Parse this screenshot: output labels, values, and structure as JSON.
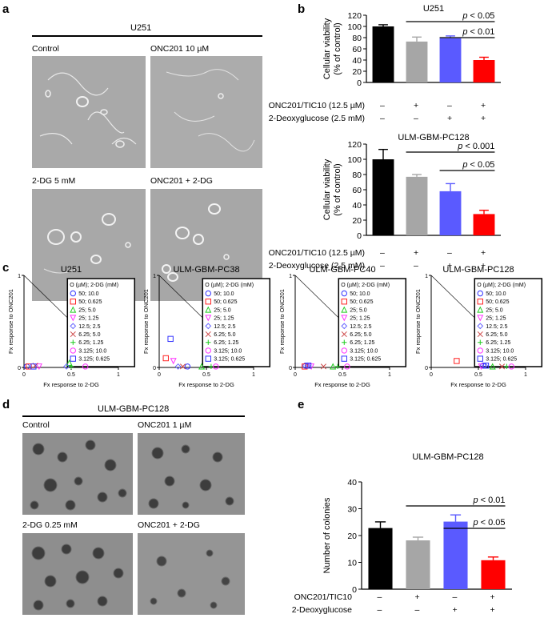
{
  "panels": {
    "a": {
      "label": "a",
      "cell_line": "U251",
      "images": [
        {
          "caption": "Control"
        },
        {
          "caption": "ONC201 10 µM"
        },
        {
          "caption": "2-DG 5 mM"
        },
        {
          "caption": "ONC201 + 2-DG"
        }
      ]
    },
    "b": {
      "label": "b"
    },
    "c": {
      "label": "c"
    },
    "d": {
      "label": "d",
      "cell_line": "ULM-GBM-PC128",
      "images": [
        {
          "caption": "Control"
        },
        {
          "caption": "ONC201 1 µM"
        },
        {
          "caption": "2-DG 0.25 mM"
        },
        {
          "caption": "ONC201 + 2-DG"
        }
      ]
    },
    "e": {
      "label": "e"
    }
  },
  "condition_rows_b": [
    {
      "label": "ONC201/TIC10 (12.5 µM)",
      "signs": [
        "–",
        "+",
        "–",
        "+"
      ]
    },
    {
      "label": "2-Deoxyglucose (2.5 mM)",
      "signs": [
        "–",
        "–",
        "+",
        "+"
      ]
    }
  ],
  "condition_rows_e": [
    {
      "label": "ONC201/TIC10",
      "signs": [
        "–",
        "+",
        "–",
        "+"
      ]
    },
    {
      "label": "2-Deoxyglucose",
      "signs": [
        "–",
        "–",
        "+",
        "+"
      ]
    }
  ],
  "colors": {
    "control": "#000000",
    "onc201": "#a6a6a6",
    "twodg": "#5a5aff",
    "combo": "#ff0000"
  },
  "chart_data": [
    {
      "id": "b1",
      "type": "bar",
      "title": "U251",
      "ylabel": "Cellular viability (% of control)",
      "ylim": [
        0,
        120
      ],
      "yticks": [
        0,
        20,
        40,
        60,
        80,
        100,
        120
      ],
      "values": [
        100,
        73,
        79,
        40
      ],
      "errors": [
        3,
        8,
        4,
        5
      ],
      "significance": [
        {
          "from": 1,
          "to": 3,
          "label": "p < 0.05"
        },
        {
          "from": 2,
          "to": 3,
          "label": "p < 0.01"
        }
      ]
    },
    {
      "id": "b2",
      "type": "bar",
      "title": "ULM-GBM-PC128",
      "ylabel": "Cellular viability (% of control)",
      "ylim": [
        0,
        120
      ],
      "yticks": [
        0,
        20,
        40,
        60,
        80,
        100,
        120
      ],
      "values": [
        100,
        77,
        58,
        28
      ],
      "errors": [
        13,
        3,
        10,
        5
      ],
      "significance": [
        {
          "from": 1,
          "to": 3,
          "label": "p < 0.001"
        },
        {
          "from": 2,
          "to": 3,
          "label": "p < 0.05"
        }
      ]
    },
    {
      "id": "c1",
      "type": "scatter",
      "title": "U251",
      "xlabel": "Fx response to 2-DG",
      "ylabel": "Fx response to ONC201",
      "xlim": [
        0,
        1
      ],
      "ylim": [
        0,
        1
      ],
      "xticks": [
        0,
        0.5,
        1
      ],
      "yticks": [
        0,
        1
      ],
      "legend_title": "O (µM); 2-DG (mM)",
      "series": [
        {
          "name": "50; 10.0",
          "marker": "circle",
          "color": "#3333ff",
          "x": 0.03,
          "y": 0.01
        },
        {
          "name": "50; 0.625",
          "marker": "square",
          "color": "#ff2222",
          "x": 0.05,
          "y": 0.01
        },
        {
          "name": "25; 5.0",
          "marker": "triangle-up",
          "color": "#22cc22",
          "x": 0.48,
          "y": 0.05
        },
        {
          "name": "25; 1.25",
          "marker": "triangle-down",
          "color": "#ff33ff",
          "x": 0.16,
          "y": 0.01
        },
        {
          "name": "12.5; 2.5",
          "marker": "diamond",
          "color": "#6666ff",
          "x": 0.45,
          "y": 0.01
        },
        {
          "name": "6.25; 5.0",
          "marker": "x",
          "color": "#cc4444",
          "x": 0.12,
          "y": 0.02
        },
        {
          "name": "6.25; 1.25",
          "marker": "plus",
          "color": "#22cc22",
          "x": 0.5,
          "y": 0.01
        },
        {
          "name": "3.125; 10.0",
          "marker": "circle",
          "color": "#ff33ff",
          "x": 0.65,
          "y": 0.01
        },
        {
          "name": "3.125; 0.625",
          "marker": "square",
          "color": "#3333ff",
          "x": 0.1,
          "y": 0.01
        }
      ]
    },
    {
      "id": "c2",
      "type": "scatter",
      "title": "ULM-GBM-PC38",
      "xlabel": "Fx response to 2-DG",
      "ylabel": "Fx response to ONC201",
      "xlim": [
        0,
        1
      ],
      "ylim": [
        0,
        1
      ],
      "xticks": [
        0,
        0.5,
        1
      ],
      "yticks": [
        0,
        1
      ],
      "legend_title": "O (µM); 2-DG (mM)",
      "series": [
        {
          "name": "50; 10.0",
          "marker": "circle",
          "color": "#3333ff",
          "x": 0.3,
          "y": 0.01
        },
        {
          "name": "50; 0.625",
          "marker": "square",
          "color": "#ff2222",
          "x": 0.07,
          "y": 0.1
        },
        {
          "name": "25; 5.0",
          "marker": "triangle-up",
          "color": "#22cc22",
          "x": 0.45,
          "y": 0.01
        },
        {
          "name": "25; 1.25",
          "marker": "triangle-down",
          "color": "#ff33ff",
          "x": 0.15,
          "y": 0.07
        },
        {
          "name": "12.5; 2.5",
          "marker": "diamond",
          "color": "#6666ff",
          "x": 0.2,
          "y": 0.01
        },
        {
          "name": "6.25; 5.0",
          "marker": "x",
          "color": "#cc4444",
          "x": 0.25,
          "y": 0.01
        },
        {
          "name": "6.25; 1.25",
          "marker": "plus",
          "color": "#22cc22",
          "x": 0.55,
          "y": 0.01
        },
        {
          "name": "3.125; 10.0",
          "marker": "circle",
          "color": "#ff33ff",
          "x": 0.6,
          "y": 0.01
        },
        {
          "name": "3.125; 0.625",
          "marker": "square",
          "color": "#3333ff",
          "x": 0.12,
          "y": 0.31
        }
      ]
    },
    {
      "id": "c3",
      "type": "scatter",
      "title": "ULM-GBM-PC40",
      "xlabel": "Fx response to 2-DG",
      "ylabel": "Fx response to ONC201",
      "xlim": [
        0,
        1
      ],
      "ylim": [
        0,
        1
      ],
      "xticks": [
        0,
        0.5,
        1
      ],
      "yticks": [
        0,
        1
      ],
      "legend_title": "O (µM); 2-DG (mM)",
      "series": [
        {
          "name": "50; 10.0",
          "marker": "circle",
          "color": "#3333ff",
          "x": 0.11,
          "y": 0.02
        },
        {
          "name": "50; 0.625",
          "marker": "square",
          "color": "#ff2222",
          "x": 0.1,
          "y": 0.01
        },
        {
          "name": "25; 5.0",
          "marker": "triangle-up",
          "color": "#22cc22",
          "x": 0.4,
          "y": 0.01
        },
        {
          "name": "25; 1.25",
          "marker": "triangle-down",
          "color": "#ff33ff",
          "x": 0.17,
          "y": 0.01
        },
        {
          "name": "12.5; 2.5",
          "marker": "diamond",
          "color": "#6666ff",
          "x": 0.13,
          "y": 0.02
        },
        {
          "name": "6.25; 5.0",
          "marker": "x",
          "color": "#cc4444",
          "x": 0.3,
          "y": 0.01
        },
        {
          "name": "6.25; 1.25",
          "marker": "plus",
          "color": "#22cc22",
          "x": 0.45,
          "y": 0.01
        },
        {
          "name": "3.125; 10.0",
          "marker": "circle",
          "color": "#ff33ff",
          "x": 0.55,
          "y": 0.01
        },
        {
          "name": "3.125; 0.625",
          "marker": "square",
          "color": "#3333ff",
          "x": 0.14,
          "y": 0.02
        }
      ]
    },
    {
      "id": "c4",
      "type": "scatter",
      "title": "ULM-GBM-PC128",
      "xlabel": "Fx response to 2-DG",
      "ylabel": "Fx response to ONC201",
      "xlim": [
        0,
        1
      ],
      "ylim": [
        0,
        1
      ],
      "xticks": [
        0,
        0.5,
        1
      ],
      "yticks": [
        0,
        1
      ],
      "legend_title": "O (µM); 2-DG (mM)",
      "series": [
        {
          "name": "50; 10.0",
          "marker": "circle",
          "color": "#3333ff",
          "x": 0.55,
          "y": 0.02
        },
        {
          "name": "50; 0.625",
          "marker": "square",
          "color": "#ff2222",
          "x": 0.27,
          "y": 0.07
        },
        {
          "name": "25; 5.0",
          "marker": "triangle-up",
          "color": "#22cc22",
          "x": 0.65,
          "y": 0.01
        },
        {
          "name": "25; 1.25",
          "marker": "triangle-down",
          "color": "#ff33ff",
          "x": 0.53,
          "y": 0.01
        },
        {
          "name": "12.5; 2.5",
          "marker": "diamond",
          "color": "#6666ff",
          "x": 0.57,
          "y": 0.02
        },
        {
          "name": "6.25; 5.0",
          "marker": "x",
          "color": "#cc4444",
          "x": 0.75,
          "y": 0.01
        },
        {
          "name": "6.25; 1.25",
          "marker": "plus",
          "color": "#22cc22",
          "x": 0.8,
          "y": 0.01
        },
        {
          "name": "3.125; 10.0",
          "marker": "circle",
          "color": "#ff33ff",
          "x": 0.85,
          "y": 0.01
        },
        {
          "name": "3.125; 0.625",
          "marker": "square",
          "color": "#3333ff",
          "x": 0.58,
          "y": 0.02
        }
      ]
    },
    {
      "id": "e",
      "type": "bar",
      "title": "ULM-GBM-PC128",
      "ylabel": "Number of colonies",
      "ylim": [
        0,
        40
      ],
      "yticks": [
        0,
        10,
        20,
        30,
        40
      ],
      "values": [
        22.8,
        18.2,
        25.2,
        10.8
      ],
      "errors": [
        2.3,
        1.2,
        2.5,
        1.2
      ],
      "significance": [
        {
          "from": 1,
          "to": 3,
          "label": "p < 0.01"
        },
        {
          "from": 2,
          "to": 3,
          "label": "p < 0.05"
        }
      ]
    }
  ]
}
